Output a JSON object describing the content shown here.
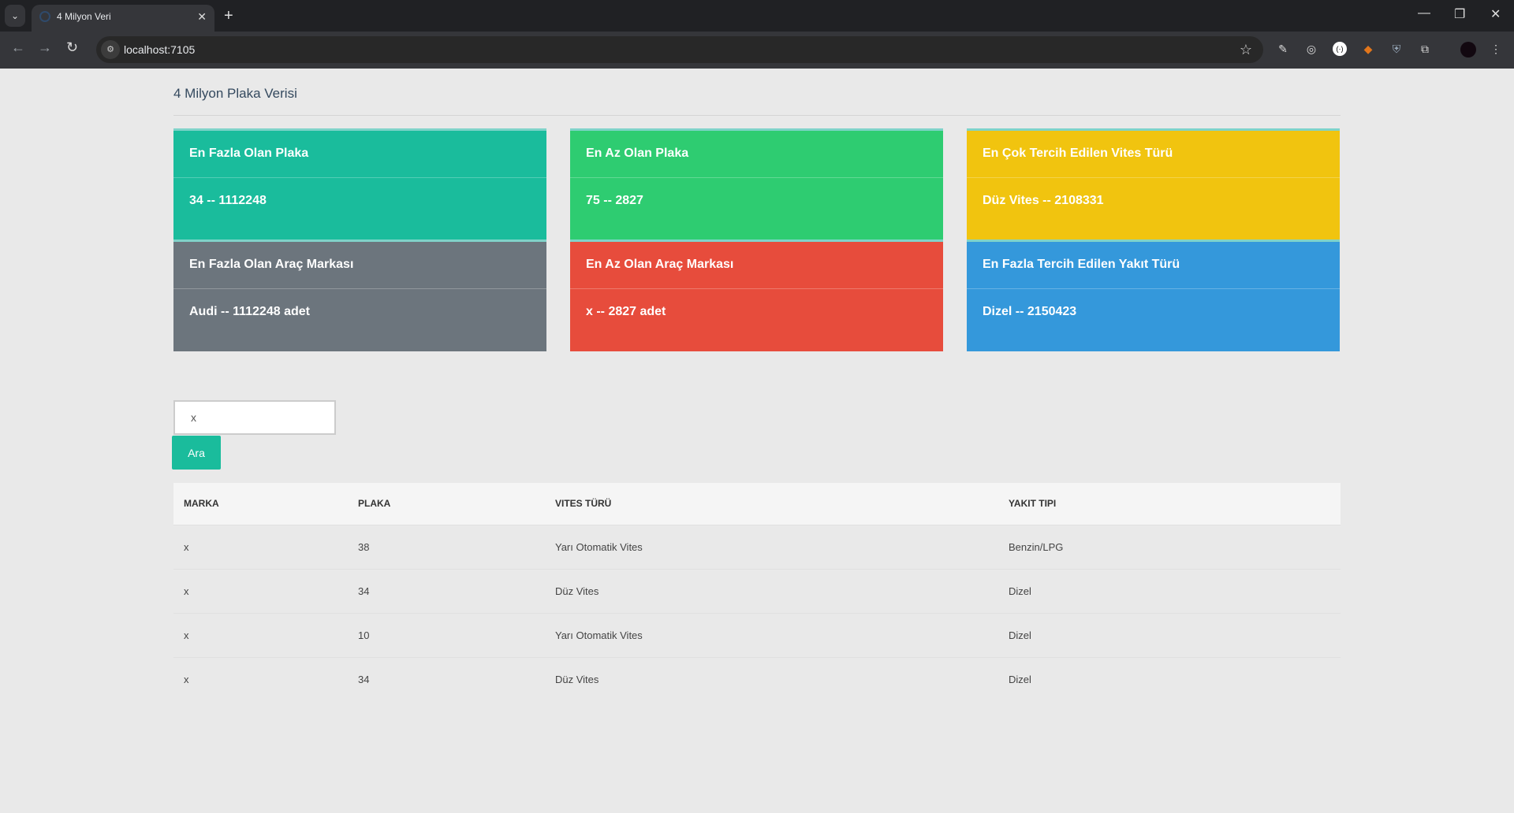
{
  "browser": {
    "tab_title": "4 Milyon Veri",
    "url": "localhost:7105"
  },
  "page": {
    "title": "4 Milyon Plaka Verisi"
  },
  "cards": [
    {
      "heading": "En Fazla Olan Plaka",
      "value": "34 -- 1112248",
      "color": "#1abc9c"
    },
    {
      "heading": "En Az Olan Plaka",
      "value": "75 -- 2827",
      "color": "#2ecc71"
    },
    {
      "heading": "En Çok Tercih Edilen Vites Türü",
      "value": "Düz Vites -- 2108331",
      "color": "#f1c40f"
    },
    {
      "heading": "En Fazla Olan Araç Markası",
      "value": "Audi -- 1112248 adet",
      "color": "#6c757d"
    },
    {
      "heading": "En Az Olan Araç Markası",
      "value": "x -- 2827 adet",
      "color": "#e74c3c"
    },
    {
      "heading": "En Fazla Tercih Edilen Yakıt Türü",
      "value": "Dizel -- 2150423",
      "color": "#3498db"
    }
  ],
  "search": {
    "value": "x",
    "button": "Ara"
  },
  "table": {
    "headers": [
      "MARKA",
      "PLAKA",
      "VITES TÜRÜ",
      "YAKIT TIPI"
    ],
    "rows": [
      [
        "x",
        "38",
        "Yarı Otomatik Vites",
        "Benzin/LPG"
      ],
      [
        "x",
        "34",
        "Düz Vites",
        "Dizel"
      ],
      [
        "x",
        "10",
        "Yarı Otomatik Vites",
        "Dizel"
      ],
      [
        "x",
        "34",
        "Düz Vites",
        "Dizel"
      ]
    ]
  }
}
